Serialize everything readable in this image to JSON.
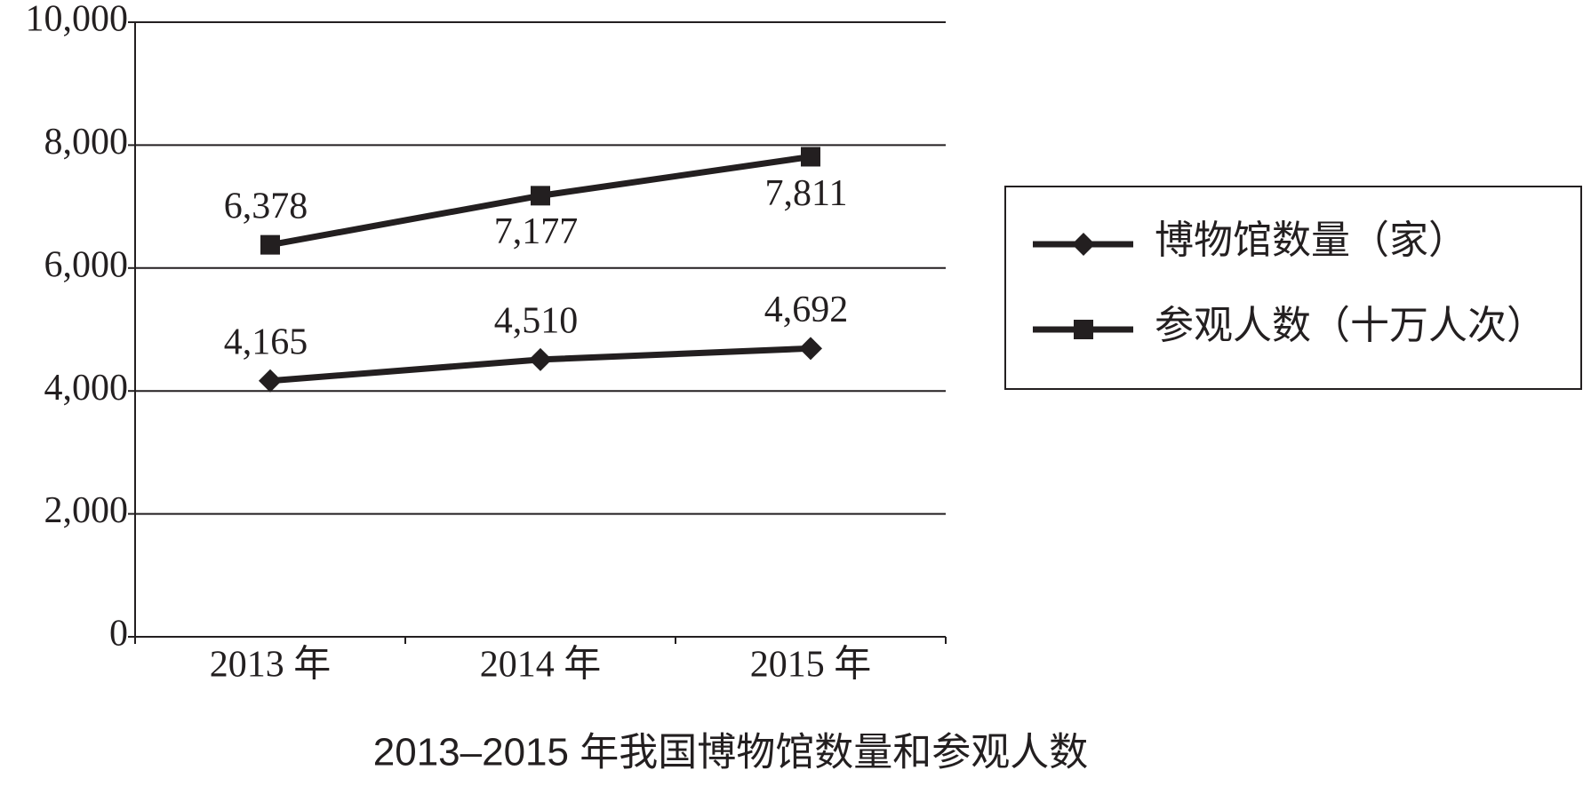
{
  "chart_data": {
    "type": "line",
    "title": "2013–2015 年我国博物馆数量和参观人数",
    "categories": [
      "2013 年",
      "2014 年",
      "2015 年"
    ],
    "series": [
      {
        "name": "博物馆数量（家）",
        "color": "#231f20",
        "marker": "diamond",
        "values": [
          4165,
          4510,
          4692
        ],
        "value_labels": [
          "4,165",
          "4,510",
          "4,692"
        ]
      },
      {
        "name": "参观人数（十万人次）",
        "color": "#231f20",
        "marker": "square",
        "values": [
          6378,
          7177,
          7811
        ],
        "value_labels": [
          "6,378",
          "7,177",
          "7,811"
        ]
      }
    ],
    "ylim": [
      0,
      10000
    ],
    "yticks": [
      0,
      {
        "value": 2000,
        "label": "2,000"
      },
      {
        "value": 4000,
        "label": "4,000"
      },
      {
        "value": 6000,
        "label": "6,000"
      },
      {
        "value": 8000,
        "label": "8,000"
      },
      {
        "value": 10000,
        "label": "10,000"
      }
    ],
    "grid": true,
    "legend": "right"
  }
}
